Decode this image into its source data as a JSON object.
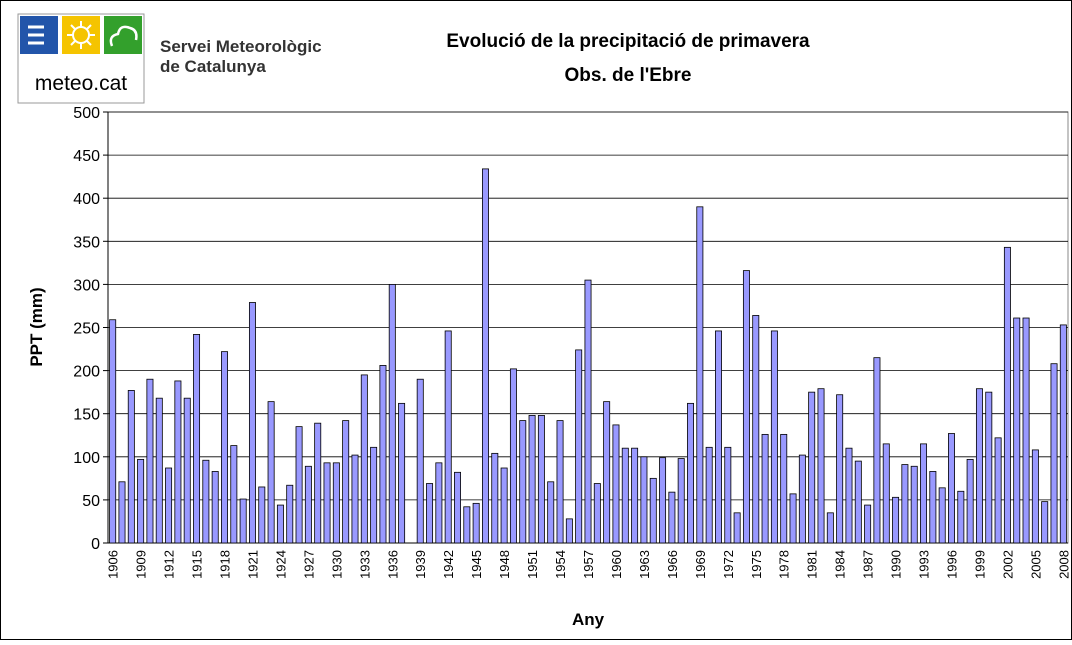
{
  "header": {
    "logo_text": "meteo.cat",
    "org_line1": "Servei Meteorològic",
    "org_line2": "de Catalunya"
  },
  "chart_data": {
    "type": "bar",
    "title": "Evolució de la precipitació de primavera",
    "subtitle": "Obs. de l'Ebre",
    "xlabel": "Any",
    "ylabel": "PPT (mm)",
    "color": "#9999ff",
    "grid": true,
    "ylim": [
      0,
      500
    ],
    "yticks": [
      0,
      50,
      100,
      150,
      200,
      250,
      300,
      350,
      400,
      450,
      500
    ],
    "categories": [
      "1906",
      null,
      null,
      "1909",
      null,
      null,
      "1912",
      null,
      null,
      "1915",
      null,
      null,
      "1918",
      null,
      null,
      "1921",
      null,
      null,
      "1924",
      null,
      null,
      "1927",
      null,
      null,
      "1930",
      null,
      null,
      "1933",
      null,
      null,
      "1936",
      null,
      null,
      "1939",
      null,
      null,
      "1942",
      null,
      null,
      "1945",
      null,
      null,
      "1948",
      null,
      null,
      "1951",
      null,
      null,
      "1954",
      null,
      null,
      "1957",
      null,
      null,
      "1960",
      null,
      null,
      "1963",
      null,
      null,
      "1966",
      null,
      null,
      "1969",
      null,
      null,
      "1972",
      null,
      null,
      "1975",
      null,
      null,
      "1978",
      null,
      null,
      "1981",
      null,
      null,
      "1984",
      null,
      null,
      "1987",
      null,
      null,
      "1990",
      null,
      null,
      "1993",
      null,
      null,
      "1996",
      null,
      null,
      "1999",
      null,
      null,
      "2002",
      null,
      null,
      "2005",
      null,
      null,
      "2008"
    ],
    "values": [
      259,
      71,
      177,
      97,
      190,
      168,
      87,
      188,
      168,
      242,
      96,
      83,
      222,
      113,
      51,
      279,
      65,
      164,
      44,
      67,
      135,
      89,
      139,
      93,
      93,
      142,
      102,
      195,
      111,
      206,
      300,
      162,
      null,
      190,
      69,
      93,
      246,
      82,
      42,
      46,
      434,
      104,
      87,
      202,
      142,
      148,
      148,
      71,
      142,
      28,
      224,
      305,
      69,
      164,
      137,
      110,
      110,
      100,
      75,
      99,
      59,
      98,
      162,
      390,
      111,
      246,
      111,
      35,
      316,
      264,
      126,
      246,
      126,
      57,
      102,
      175,
      179,
      35,
      172,
      110,
      95,
      44,
      215,
      115,
      53,
      91,
      89,
      115,
      83,
      64,
      127,
      60,
      97,
      179,
      175,
      122,
      343,
      261,
      261,
      108,
      48,
      208,
      253
    ]
  }
}
